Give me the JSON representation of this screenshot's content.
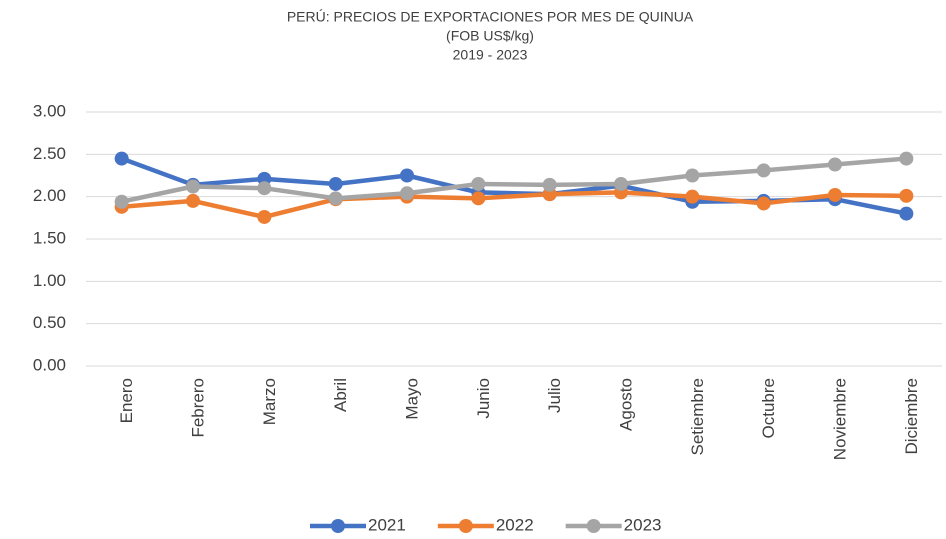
{
  "chart_data": {
    "type": "line",
    "title": [
      "PERÚ: PRECIOS DE EXPORTACIONES POR MES DE QUINUA",
      "(FOB US$/kg)",
      "2019 - 2023"
    ],
    "categories": [
      "Enero",
      "Febrero",
      "Marzo",
      "Abril",
      "Mayo",
      "Junio",
      "Julio",
      "Agosto",
      "Setiembre",
      "Octubre",
      "Noviembre",
      "Diciembre"
    ],
    "series": [
      {
        "name": "2021",
        "color": "#4472c4",
        "values": [
          2.45,
          2.14,
          2.21,
          2.15,
          2.25,
          2.05,
          2.03,
          2.13,
          1.94,
          1.95,
          1.97,
          1.8
        ]
      },
      {
        "name": "2022",
        "color": "#ed7d31",
        "values": [
          1.88,
          1.95,
          1.76,
          1.97,
          2.0,
          1.98,
          2.03,
          2.05,
          2.0,
          1.92,
          2.02,
          2.01
        ]
      },
      {
        "name": "2023",
        "color": "#a5a5a5",
        "values": [
          1.94,
          2.12,
          2.1,
          1.98,
          2.04,
          2.15,
          2.14,
          2.15,
          2.25,
          2.31,
          2.38,
          2.45
        ]
      }
    ],
    "ylim": [
      0,
      3
    ],
    "yticks": [
      {
        "value": 0,
        "label": "0.00"
      },
      {
        "value": 0.5,
        "label": "0.50"
      },
      {
        "value": 1,
        "label": "1.00"
      },
      {
        "value": 1.5,
        "label": "1.50"
      },
      {
        "value": 2,
        "label": "2.00"
      },
      {
        "value": 2.5,
        "label": "2.50"
      },
      {
        "value": 3,
        "label": "3.00"
      }
    ],
    "grid": true,
    "legend": "bottom"
  }
}
